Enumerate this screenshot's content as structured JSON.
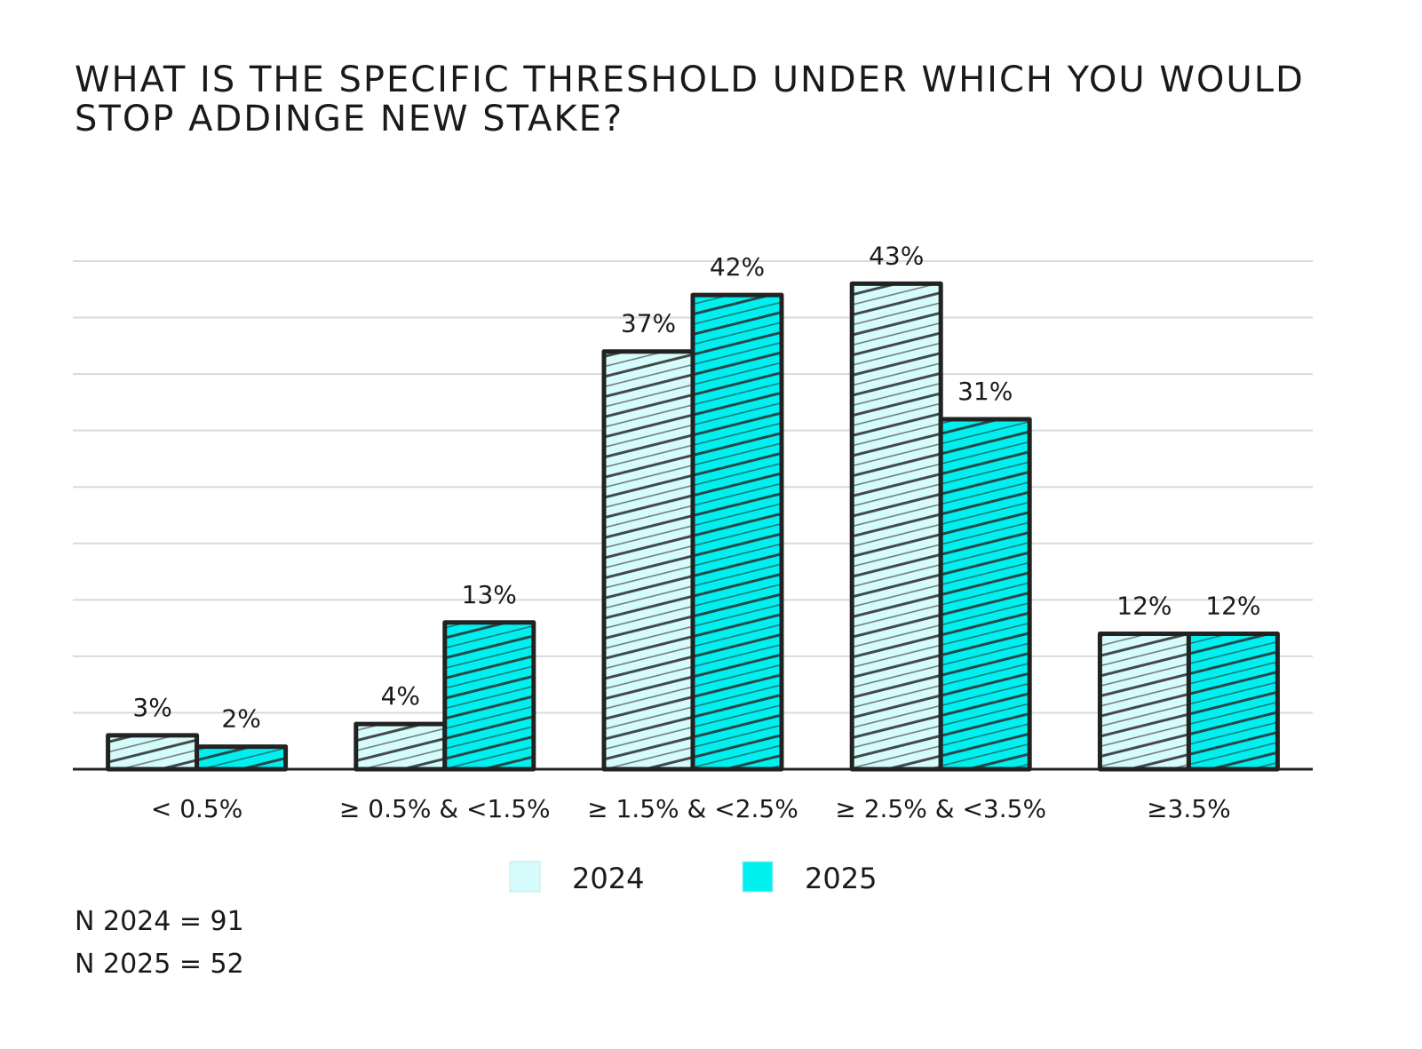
{
  "chart_data": {
    "type": "bar",
    "title": "What is the specific threshold under which you would stop addinge new stake?",
    "categories": [
      "< 0.5%",
      "≥ 0.5% & <1.5%",
      "≥ 1.5% & <2.5%",
      "≥ 2.5% & <3.5%",
      "≥3.5%"
    ],
    "series": [
      {
        "name": "2024",
        "values": [
          3,
          4,
          37,
          43,
          12
        ],
        "labels": [
          "3%",
          "4%",
          "37%",
          "43%",
          "12%"
        ],
        "color": "#d5fbfb"
      },
      {
        "name": "2025",
        "values": [
          2,
          13,
          42,
          31,
          12
        ],
        "labels": [
          "2%",
          "13%",
          "42%",
          "31%",
          "12%"
        ],
        "color": "#00f0f0"
      }
    ],
    "ylim": [
      0,
      45
    ],
    "grid": true,
    "legend_position": "bottom-center",
    "xlabel": "",
    "ylabel": ""
  },
  "notes": {
    "n_2024": "N 2024 = 91",
    "n_2025": "N 2025 = 52"
  },
  "colors": {
    "outline": "#222222",
    "grid": "#d9d9d9",
    "hatch": "#2a2a2a"
  }
}
